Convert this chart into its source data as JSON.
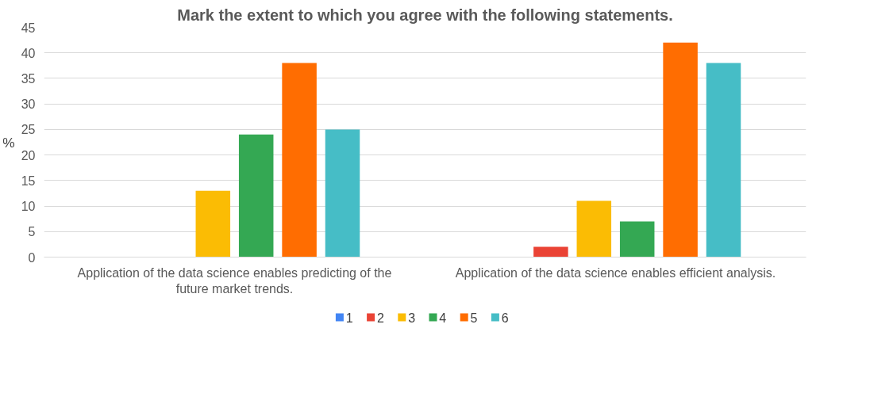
{
  "chart_data": {
    "type": "bar",
    "title": "Mark the extent to which you agree with the following statements.",
    "ylabel": "%",
    "categories": [
      "Application of the data science enables predicting of the future market trends.",
      "Application of the data science enables efficient analysis."
    ],
    "series": [
      {
        "name": "1",
        "color": "#4285f4",
        "values": [
          0,
          0
        ]
      },
      {
        "name": "2",
        "color": "#ea4335",
        "values": [
          0,
          2
        ]
      },
      {
        "name": "3",
        "color": "#fbbc04",
        "values": [
          13,
          11
        ]
      },
      {
        "name": "4",
        "color": "#34a853",
        "values": [
          24,
          7
        ]
      },
      {
        "name": "5",
        "color": "#ff6d01",
        "values": [
          38,
          42
        ]
      },
      {
        "name": "6",
        "color": "#46bdc6",
        "values": [
          25,
          38
        ]
      }
    ],
    "ylim": [
      0,
      45
    ],
    "yticks": [
      0,
      5,
      10,
      15,
      20,
      25,
      30,
      35,
      40,
      45
    ],
    "grid": "y",
    "legend": "bottom"
  }
}
